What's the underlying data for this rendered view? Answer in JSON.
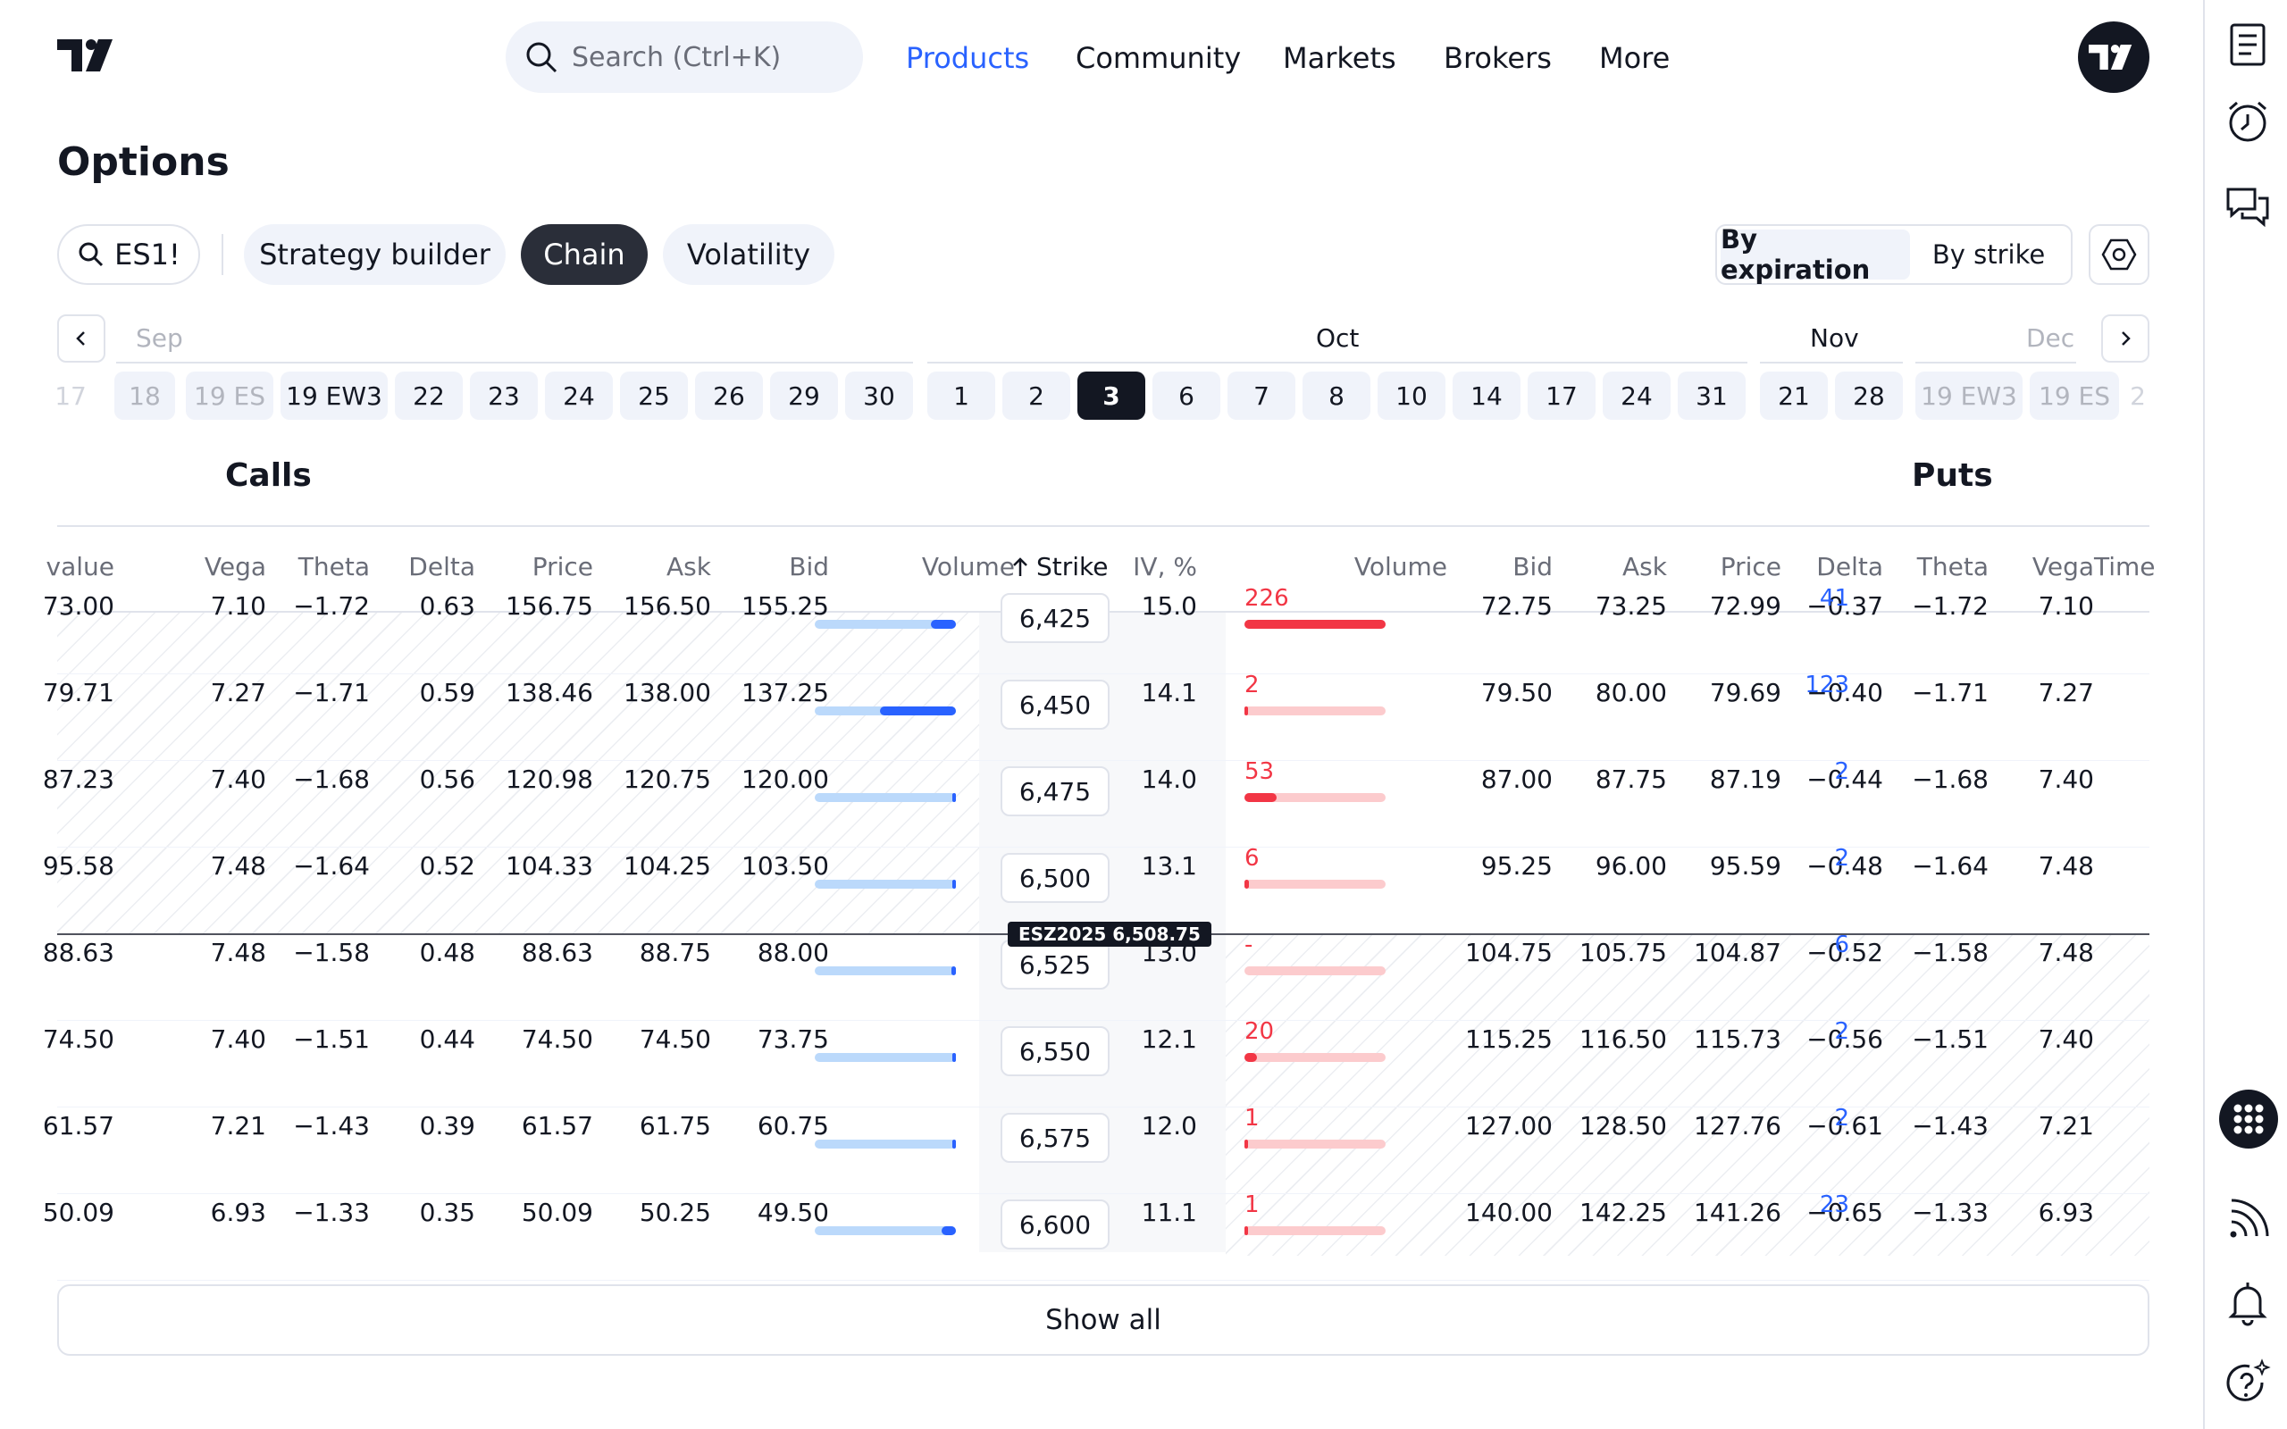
{
  "header": {
    "search_placeholder": "Search (Ctrl+K)",
    "nav": [
      "Products",
      "Community",
      "Markets",
      "Brokers",
      "More"
    ],
    "active_nav": "Products",
    "accent": "#2962ff"
  },
  "page": {
    "title": "Options",
    "symbol": "ES1!",
    "tabs": [
      "Strategy builder",
      "Chain",
      "Volatility"
    ],
    "active_tab": "Chain",
    "toggle": [
      "By expiration",
      "By strike"
    ],
    "active_toggle": "By expiration"
  },
  "expirations": {
    "months": [
      "Sep",
      "Oct",
      "Nov",
      "Dec"
    ],
    "dates": [
      "17",
      "18",
      "19 ES",
      "19 EW3",
      "22",
      "23",
      "24",
      "25",
      "26",
      "29",
      "30",
      "1",
      "2",
      "3",
      "6",
      "7",
      "8",
      "10",
      "14",
      "17",
      "24",
      "31",
      "21",
      "28",
      "19 EW3",
      "19 ES",
      "2"
    ],
    "active": "3"
  },
  "chain": {
    "calls_label": "Calls",
    "puts_label": "Puts",
    "headers": {
      "calls": [
        "value",
        "Vega",
        "Theta",
        "Delta",
        "Price",
        "Ask",
        "Bid",
        "Volume"
      ],
      "strike": "Strike",
      "iv": "IV, %",
      "puts": [
        "Volume",
        "Bid",
        "Ask",
        "Price",
        "Delta",
        "Theta",
        "Vega",
        "Time"
      ]
    },
    "rows": [
      {
        "cvalue": "73.00",
        "cvega": "7.10",
        "ctheta": "−1.72",
        "cdelta": "0.63",
        "cprice": "156.75",
        "cask": "156.50",
        "cbid": "155.25",
        "cvol": "41",
        "cvol_frac": 0.18,
        "strike": "6,425",
        "iv": "15.0",
        "pvol": "226",
        "pvol_frac": 1.0,
        "pbid": "72.75",
        "pask": "73.25",
        "pprice": "72.99",
        "pdelta": "−0.37",
        "ptheta": "−1.72",
        "pvega": "7.10"
      },
      {
        "cvalue": "79.71",
        "cvega": "7.27",
        "ctheta": "−1.71",
        "cdelta": "0.59",
        "cprice": "138.46",
        "cask": "138.00",
        "cbid": "137.25",
        "cvol": "123",
        "cvol_frac": 0.54,
        "strike": "6,450",
        "iv": "14.1",
        "pvol": "2",
        "pvol_frac": 0.01,
        "pbid": "79.50",
        "pask": "80.00",
        "pprice": "79.69",
        "pdelta": "−0.40",
        "ptheta": "−1.71",
        "pvega": "7.27"
      },
      {
        "cvalue": "87.23",
        "cvega": "7.40",
        "ctheta": "−1.68",
        "cdelta": "0.56",
        "cprice": "120.98",
        "cask": "120.75",
        "cbid": "120.00",
        "cvol": "2",
        "cvol_frac": 0.01,
        "strike": "6,475",
        "iv": "14.0",
        "pvol": "53",
        "pvol_frac": 0.23,
        "pbid": "87.00",
        "pask": "87.75",
        "pprice": "87.19",
        "pdelta": "−0.44",
        "ptheta": "−1.68",
        "pvega": "7.40"
      },
      {
        "cvalue": "95.58",
        "cvega": "7.48",
        "ctheta": "−1.64",
        "cdelta": "0.52",
        "cprice": "104.33",
        "cask": "104.25",
        "cbid": "103.50",
        "cvol": "2",
        "cvol_frac": 0.01,
        "strike": "6,500",
        "iv": "13.1",
        "pvol": "6",
        "pvol_frac": 0.03,
        "pbid": "95.25",
        "pask": "96.00",
        "pprice": "95.59",
        "pdelta": "−0.48",
        "ptheta": "−1.64",
        "pvega": "7.48"
      },
      {
        "cvalue": "88.63",
        "cvega": "7.48",
        "ctheta": "−1.58",
        "cdelta": "0.48",
        "cprice": "88.63",
        "cask": "88.75",
        "cbid": "88.00",
        "cvol": "6",
        "cvol_frac": 0.03,
        "strike": "6,525",
        "iv": "13.0",
        "pvol": "-",
        "pvol_frac": 0,
        "pbid": "104.75",
        "pask": "105.75",
        "pprice": "104.87",
        "pdelta": "−0.52",
        "ptheta": "−1.58",
        "pvega": "7.48"
      },
      {
        "cvalue": "74.50",
        "cvega": "7.40",
        "ctheta": "−1.51",
        "cdelta": "0.44",
        "cprice": "74.50",
        "cask": "74.50",
        "cbid": "73.75",
        "cvol": "2",
        "cvol_frac": 0.01,
        "strike": "6,550",
        "iv": "12.1",
        "pvol": "20",
        "pvol_frac": 0.09,
        "pbid": "115.25",
        "pask": "116.50",
        "pprice": "115.73",
        "pdelta": "−0.56",
        "ptheta": "−1.51",
        "pvega": "7.40"
      },
      {
        "cvalue": "61.57",
        "cvega": "7.21",
        "ctheta": "−1.43",
        "cdelta": "0.39",
        "cprice": "61.57",
        "cask": "61.75",
        "cbid": "60.75",
        "cvol": "2",
        "cvol_frac": 0.01,
        "strike": "6,575",
        "iv": "12.0",
        "pvol": "1",
        "pvol_frac": 0.005,
        "pbid": "127.00",
        "pask": "128.50",
        "pprice": "127.76",
        "pdelta": "−0.61",
        "ptheta": "−1.43",
        "pvega": "7.21"
      },
      {
        "cvalue": "50.09",
        "cvega": "6.93",
        "ctheta": "−1.33",
        "cdelta": "0.35",
        "cprice": "50.09",
        "cask": "50.25",
        "cbid": "49.50",
        "cvol": "23",
        "cvol_frac": 0.1,
        "strike": "6,600",
        "iv": "11.1",
        "pvol": "1",
        "pvol_frac": 0.005,
        "pbid": "140.00",
        "pask": "142.25",
        "pprice": "141.26",
        "pdelta": "−0.65",
        "ptheta": "−1.33",
        "pvega": "6.93"
      }
    ],
    "underlying_tag": "ESZ2025 6,508.75",
    "show_all": "Show all"
  },
  "icons": [
    "search-icon",
    "tradingview-logo",
    "user-avatar",
    "watchlist-icon",
    "alarm-icon",
    "chat-icon",
    "apps-icon",
    "stream-icon",
    "notification-bell-icon",
    "help-icon",
    "settings-icon"
  ]
}
